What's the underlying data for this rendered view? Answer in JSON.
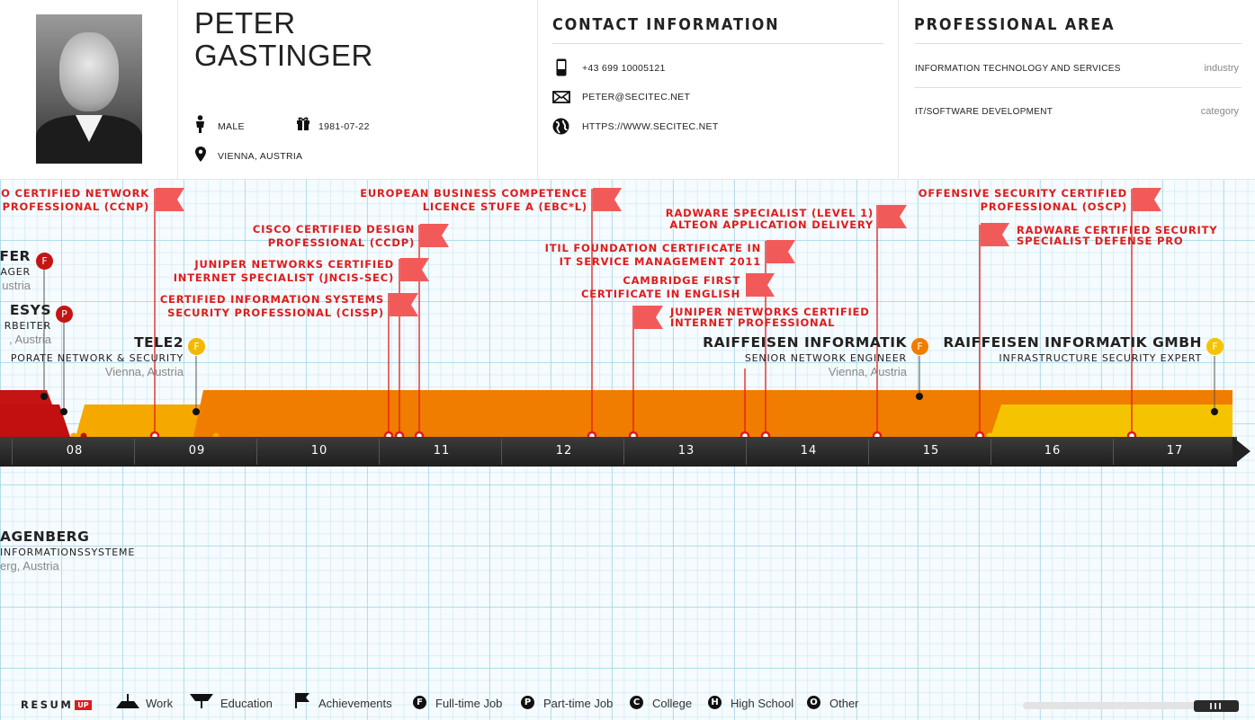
{
  "profile": {
    "first_name": "PETER",
    "last_name": "GASTINGER",
    "gender": "MALE",
    "birthdate": "1981-07-22",
    "location": "VIENNA, AUSTRIA"
  },
  "contact": {
    "title": "CONTACT INFORMATION",
    "phone": "+43 699 10005121",
    "email": "PETER@SECITEC.NET",
    "website": "HTTPS://WWW.SECITEC.NET"
  },
  "professional": {
    "title": "PROFESSIONAL AREA",
    "rows": [
      {
        "value": "INFORMATION TECHNOLOGY AND SERVICES",
        "key": "industry"
      },
      {
        "value": "IT/SOFTWARE DEVELOPMENT",
        "key": "category"
      }
    ]
  },
  "achievements": [
    {
      "l1": "O CERTIFIED NETWORK",
      "l2": "PROFESSIONAL (CCNP)"
    },
    {
      "l1": "CISCO CERTIFIED DESIGN",
      "l2": "PROFESSIONAL (CCDP)"
    },
    {
      "l1": "JUNIPER NETWORKS CERTIFIED",
      "l2": "INTERNET SPECIALIST (JNCIS-SEC)"
    },
    {
      "l1": "CERTIFIED INFORMATION SYSTEMS",
      "l2": "SECURITY PROFESSIONAL (CISSP)"
    },
    {
      "l1": "EUROPEAN BUSINESS COMPETENCE",
      "l2": "LICENCE STUFE A (EBC*L)"
    },
    {
      "l1": "ITIL FOUNDATION CERTIFICATE IN",
      "l2": "IT SERVICE MANAGEMENT 2011"
    },
    {
      "l1": "CAMBRIDGE FIRST",
      "l2": "CERTIFICATE IN ENGLISH"
    },
    {
      "l1": "JUNIPER NETWORKS CERTIFIED",
      "l2": "INTERNET PROFESSIONAL"
    },
    {
      "l1": "RADWARE SPECIALIST (LEVEL 1)",
      "l2": "ALTEON APPLICATION DELIVERY"
    },
    {
      "l1": "OFFENSIVE SECURITY CERTIFIED",
      "l2": "PROFESSIONAL (OSCP)"
    },
    {
      "l1": "RADWARE CERTIFIED SECURITY",
      "l2": "SPECIALIST DEFENSE PRO"
    }
  ],
  "jobs": [
    {
      "title": "FER",
      "role": "AGER",
      "location": "ustria",
      "badge": "F"
    },
    {
      "title": "ESYS",
      "role": "RBEITER",
      "location": ", Austria",
      "badge": "P"
    },
    {
      "title": "TELE2",
      "role": "PORATE NETWORK & SECURITY",
      "location": "Vienna, Austria",
      "badge": "F"
    },
    {
      "title": "RAIFFEISEN INFORMATIK",
      "role": "SENIOR NETWORK ENGINEER",
      "location": "Vienna, Austria",
      "badge": "F"
    },
    {
      "title": "RAIFFEISEN INFORMATIK GMBH",
      "role": "INFRASTRUCTURE SECURITY EXPERT",
      "location": "",
      "badge": "F"
    }
  ],
  "education": {
    "title": "AGENBERG",
    "role": "INFORMATIONSSYSTEME",
    "location": "erg, Austria"
  },
  "years": [
    "08",
    "09",
    "10",
    "11",
    "12",
    "13",
    "14",
    "15",
    "16",
    "17"
  ],
  "legend": {
    "brand": "RESUM",
    "brand_badge": "UP",
    "items": [
      "Work",
      "Education",
      "Achievements",
      "Full-time Job",
      "Part-time Job",
      "College",
      "High School",
      "Other"
    ],
    "badges": [
      "F",
      "P",
      "C",
      "H",
      "O"
    ]
  },
  "colors": {
    "accent": "#e01b1b",
    "orange": "#f07c00",
    "yellow": "#f5b800",
    "darkred": "#b30d0d"
  }
}
